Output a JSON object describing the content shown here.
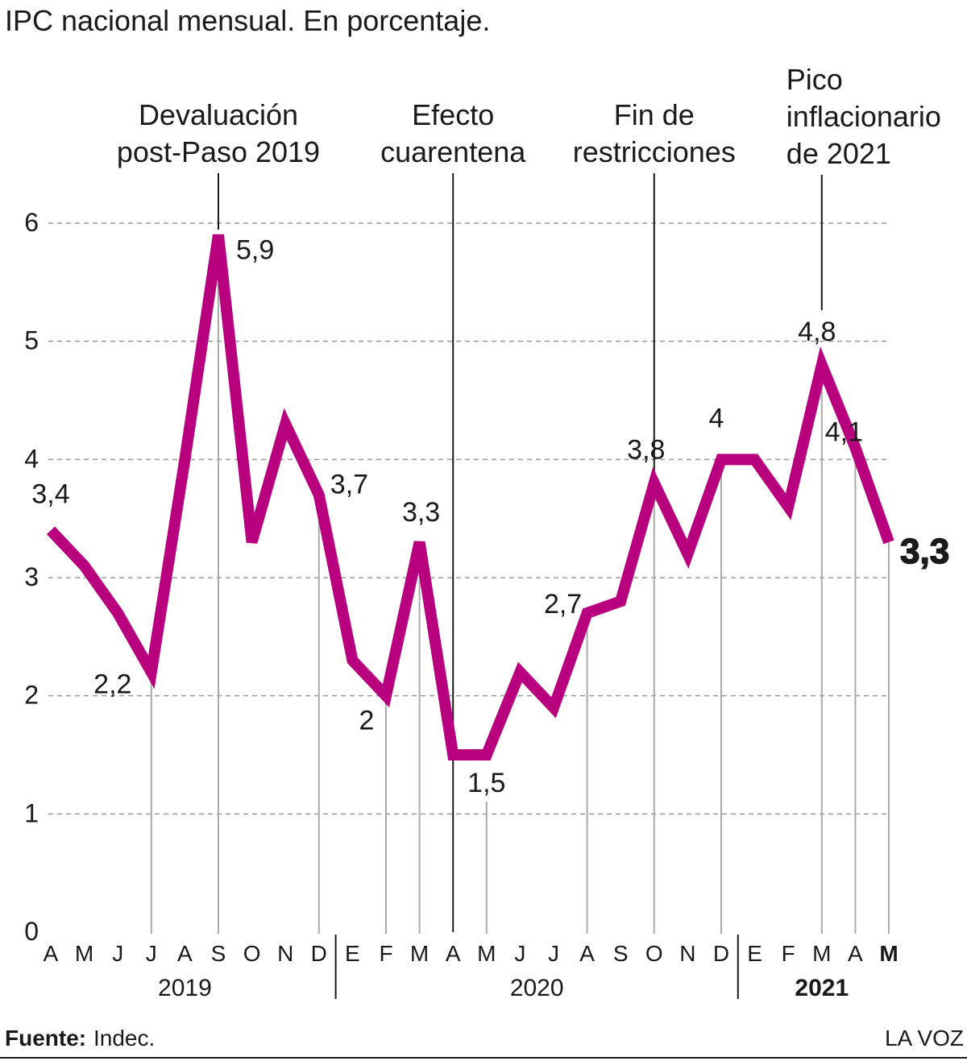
{
  "chart_data": {
    "type": "line",
    "title": "IPC nacional mensual. En porcentaje.",
    "categories": [
      "A",
      "M",
      "J",
      "J",
      "A",
      "S",
      "O",
      "N",
      "D",
      "E",
      "F",
      "M",
      "A",
      "M",
      "J",
      "J",
      "A",
      "S",
      "O",
      "N",
      "D",
      "E",
      "F",
      "M",
      "A",
      "M"
    ],
    "values": [
      3.4,
      3.1,
      2.7,
      2.2,
      4.0,
      5.9,
      3.3,
      4.3,
      3.7,
      2.3,
      2.0,
      3.3,
      1.5,
      1.5,
      2.2,
      1.9,
      2.7,
      2.8,
      3.8,
      3.2,
      4.0,
      4.0,
      3.6,
      4.8,
      4.1,
      3.3
    ],
    "value_labels": [
      "3,4",
      null,
      null,
      "2,2",
      null,
      "5,9",
      null,
      null,
      "3,7",
      null,
      "2",
      "3,3",
      null,
      "1,5",
      null,
      null,
      "2,7",
      null,
      "3,8",
      null,
      "4",
      null,
      null,
      "4,8",
      "4,1",
      "3,3"
    ],
    "color": "#b8007e",
    "ylim": [
      0,
      6
    ],
    "yticks": [
      0,
      1,
      2,
      3,
      4,
      5,
      6
    ],
    "grid": true,
    "years": [
      {
        "label": "2019",
        "start": 0,
        "end": 8
      },
      {
        "label": "2020",
        "start": 9,
        "end": 20
      },
      {
        "label": "2021",
        "start": 21,
        "end": 25
      }
    ],
    "annotations": [
      {
        "x": 5,
        "lines": [
          "Devaluación",
          "post-Paso 2019"
        ]
      },
      {
        "x": 12,
        "lines": [
          "Efecto",
          "cuarentena"
        ]
      },
      {
        "x": 18,
        "lines": [
          "Fin de",
          "restricciones"
        ]
      },
      {
        "x": 23,
        "lines": [
          "Pico",
          "inflacionario",
          "de 2021"
        ]
      }
    ],
    "source_label": "Fuente:",
    "source": "Indec.",
    "brand": "LA VOZ"
  }
}
